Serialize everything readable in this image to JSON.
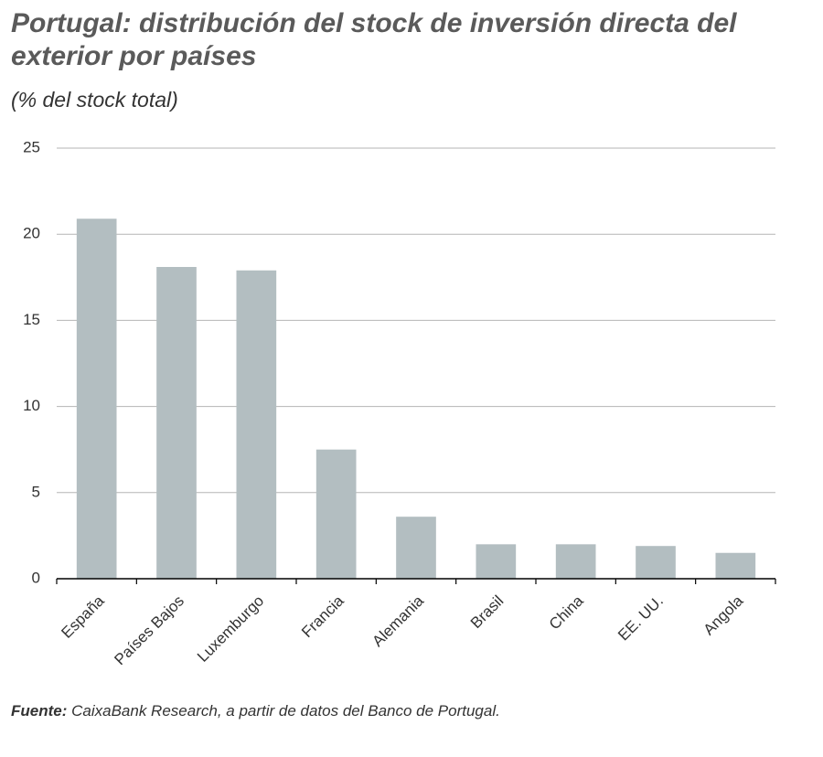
{
  "chart_data": {
    "type": "bar",
    "title": "Portugal: distribución del stock de inversión directa del exterior por países",
    "subtitle": "(% del stock total)",
    "categories": [
      "España",
      "Países Bajos",
      "Luxemburgo",
      "Francia",
      "Alemania",
      "Brasil",
      "China",
      "EE. UU.",
      "Angola"
    ],
    "values": [
      20.9,
      18.1,
      17.9,
      7.5,
      3.6,
      2.0,
      2.0,
      1.9,
      1.5
    ],
    "color": "#b3bec1",
    "ylim": [
      0,
      25
    ],
    "yticks": [
      0,
      5,
      10,
      15,
      20,
      25
    ],
    "grid": true,
    "source_label": "Fuente:",
    "source": "CaixaBank Research, a partir de datos del Banco de Portugal."
  }
}
